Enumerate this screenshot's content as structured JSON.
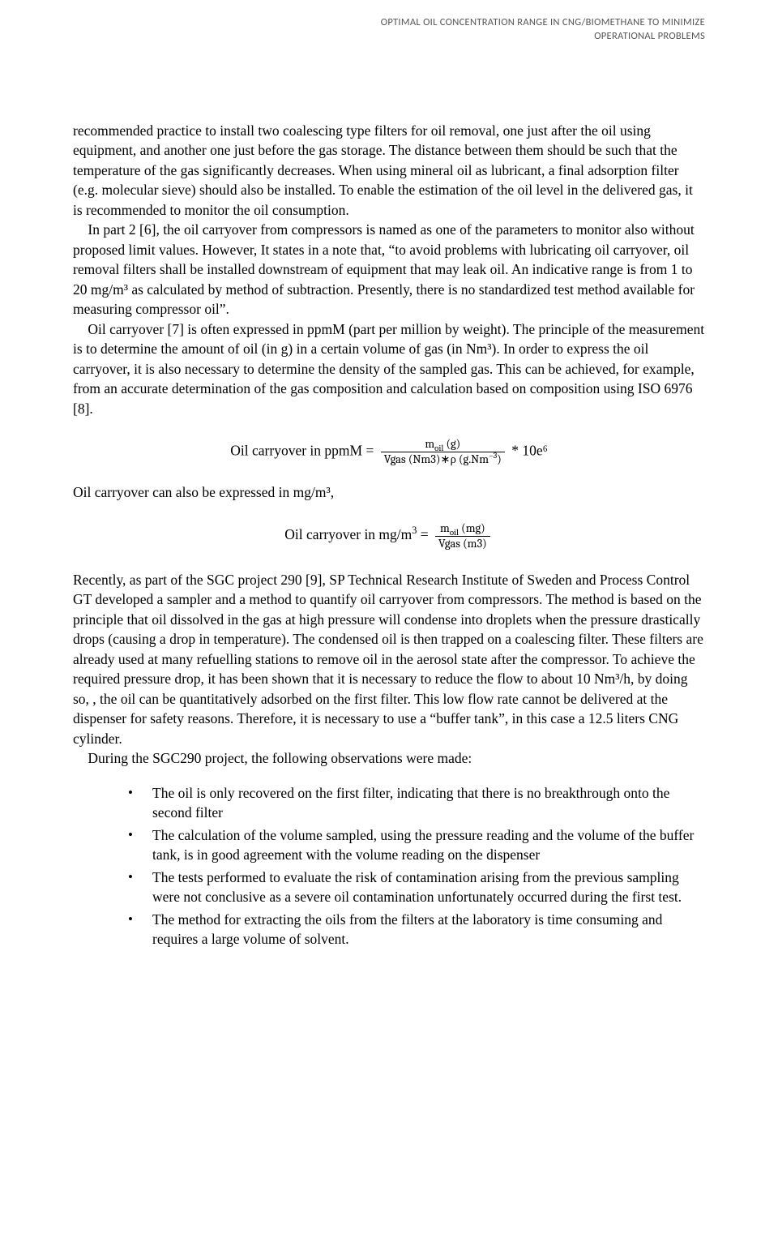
{
  "header": {
    "line1": "OPTIMAL OIL CONCENTRATION RANGE IN CNG/BIOMETHANE TO MINIMIZE",
    "line2": "OPERATIONAL PROBLEMS"
  },
  "paragraphs": {
    "p1": "recommended practice to install two coalescing type filters for oil removal, one just after the oil using equipment, and another one just before the gas storage. The distance between them should be such that the temperature of the gas significantly decreases. When using mineral oil as lubricant, a final adsorption filter (e.g. molecular sieve) should also be installed. To enable the estimation of the oil level in the delivered gas, it is recommended to monitor the oil consumption.",
    "p2": "In part 2 [6], the oil carryover from compressors is named as one of the parameters to monitor also without proposed limit values. However, It states in a note that, “to avoid problems with lubricating oil carryover, oil removal filters shall be installed downstream of equipment that may leak oil. An indicative range is from 1 to 20 mg/m³ as calculated by method of subtraction. Presently, there is no standardized test method available for measuring compressor oil”.",
    "p3": "Oil carryover [7] is often expressed in ppmM (part per million by weight). The principle of the measurement is to determine the amount of oil (in g) in a certain volume of gas (in Nm³). In order to express the oil carryover, it is also necessary to determine the density of the sampled gas. This can be achieved, for example, from an accurate determination of the gas composition and calculation based on composition using ISO 6976 [8].",
    "p4": "Oil carryover can also be expressed in mg/m³,",
    "p5": "Recently, as part of the SGC project 290 [9], SP Technical Research Institute of Sweden and Process Control GT developed a sampler and a method to quantify oil carryover from compressors. The method is based on the principle that oil dissolved in the gas at high pressure will condense into droplets when the pressure drastically drops (causing a drop in temperature). The condensed oil is then trapped on a coalescing filter. These filters are already used at many refuelling stations to remove oil in the aerosol state after the compressor. To achieve the required pressure drop, it has been shown that it is necessary to reduce the flow to about 10 Nm³/h, by doing so, , the oil can be quantitatively adsorbed on the first filter. This low flow rate cannot be delivered at the dispenser for safety reasons. Therefore, it is necessary to use a “buffer tank”, in this case a 12.5 liters CNG cylinder.",
    "p6": "During the SGC290 project, the following observations were made:"
  },
  "formula1": {
    "label": "Oil carryover in ppmM = ",
    "num": "m_oil (g)",
    "den": "Vgas (Nm3)∗ρ (g.Nm⁻³)",
    "tail": " * 10e⁶"
  },
  "formula2": {
    "label": "Oil carryover in mg/m³ = ",
    "num": "m_oil (mg)",
    "den": "Vgas (m3)"
  },
  "observations": {
    "item1": "The oil is only recovered on the first filter, indicating that there is no breakthrough onto the second filter",
    "item2": "The calculation of the volume sampled, using the pressure reading and the volume of the buffer tank, is in good agreement with the volume reading on the dispenser",
    "item3": "The tests performed to evaluate the risk of contamination arising from the previous sampling were not conclusive as a severe oil contamination unfortunately occurred during the first test.",
    "item4": "The method for extracting the oils from the filters at the laboratory is time consuming and requires a large volume of solvent."
  }
}
